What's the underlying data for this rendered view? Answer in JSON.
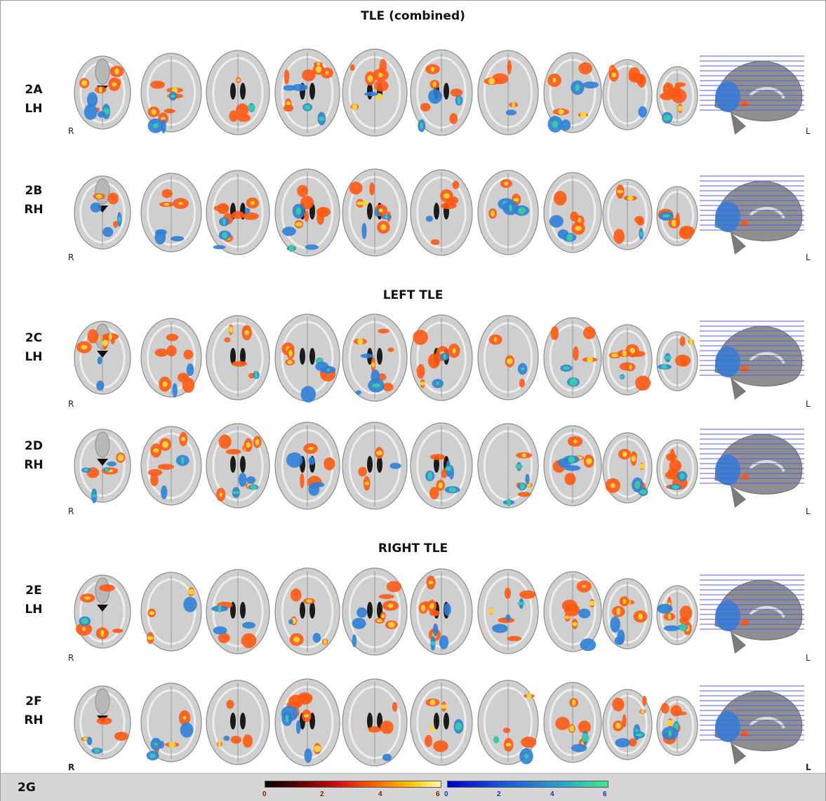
{
  "sections": [
    {
      "title": "TLE (combined)"
    },
    {
      "title": "LEFT TLE"
    },
    {
      "title": "RIGHT TLE"
    }
  ],
  "rows": [
    {
      "id": "2A",
      "hemi": "LH",
      "r": "R",
      "l": "L"
    },
    {
      "id": "2B",
      "hemi": "RH",
      "r": "R",
      "l": "L"
    },
    {
      "id": "2C",
      "hemi": "LH",
      "r": "R",
      "l": "L"
    },
    {
      "id": "2D",
      "hemi": "RH",
      "r": "R",
      "l": "L"
    },
    {
      "id": "2E",
      "hemi": "LH",
      "r": "R",
      "l": "L"
    },
    {
      "id": "2F",
      "hemi": "RH",
      "r": "R",
      "l": "L"
    }
  ],
  "footer": {
    "label": "2G",
    "positive_scale": {
      "ticks": [
        "0",
        "2",
        "4",
        "6"
      ],
      "color": "#d01010"
    },
    "negative_scale": {
      "ticks": [
        "0",
        "2",
        "4",
        "6"
      ],
      "color": "#1a58d8"
    }
  },
  "colors": {
    "positive": "#ff5a14",
    "positive_core": "#ffd23c",
    "negative": "#2f7fd6",
    "negative_core": "#3ac9a8",
    "brain": "#cfcfcf"
  }
}
